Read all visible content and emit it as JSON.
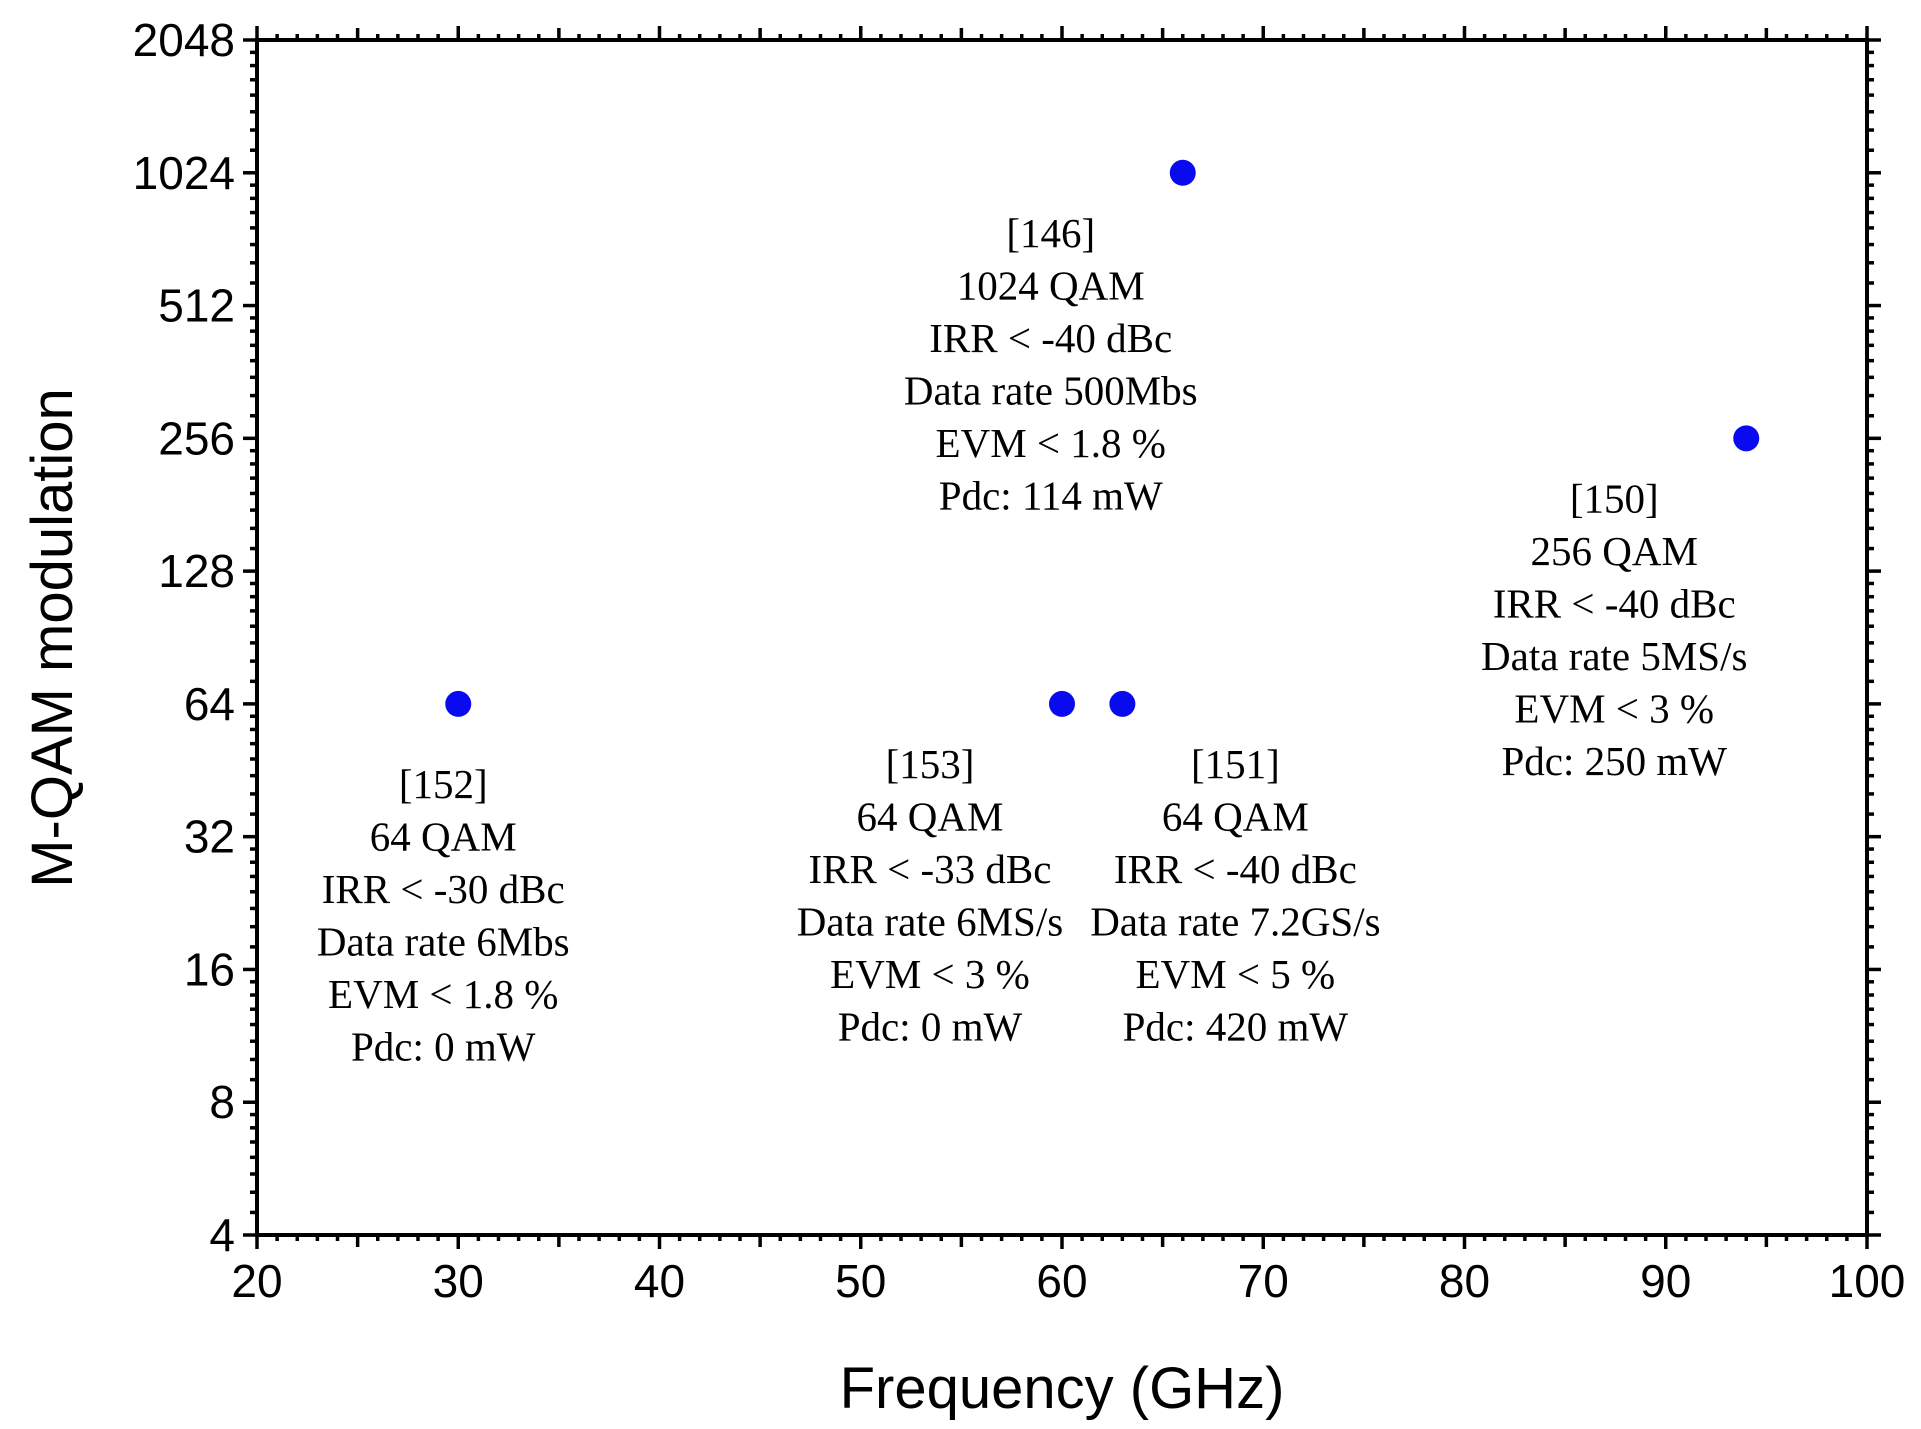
{
  "chart_data": {
    "type": "scatter",
    "title": "",
    "xlabel": "Frequency (GHz)",
    "ylabel": "M-QAM modulation",
    "xlim": [
      20,
      100
    ],
    "ylim": [
      4,
      2048
    ],
    "yscale": "log2",
    "grid": false,
    "legend": "none",
    "marker_color": "#0a0af0",
    "x_ticks": [
      20,
      30,
      40,
      50,
      60,
      70,
      80,
      90,
      100
    ],
    "y_ticks": [
      4,
      8,
      16,
      32,
      64,
      128,
      256,
      512,
      1024,
      2048
    ],
    "x_tick_labels": [
      "20",
      "30",
      "40",
      "50",
      "60",
      "70",
      "80",
      "90",
      "100"
    ],
    "y_tick_labels": [
      "4",
      "8",
      "16",
      "32",
      "64",
      "128",
      "256",
      "512",
      "1024",
      "2048"
    ],
    "points": [
      {
        "x": 30,
        "y": 64,
        "label": [
          "[152]",
          "64 QAM",
          "IRR < -30 dBc",
          "Data rate 6Mbs",
          "EVM < 1.8 %",
          "Pdc: 0 mW"
        ],
        "label_pos": "below"
      },
      {
        "x": 60,
        "y": 64,
        "label": [
          "[153]",
          "64 QAM",
          "IRR < -33 dBc",
          "Data rate 6MS/s",
          "EVM < 3 %",
          "Pdc: 0 mW"
        ],
        "label_pos": "below-left"
      },
      {
        "x": 63,
        "y": 64,
        "label": [
          "[151]",
          "64 QAM",
          "IRR < -40 dBc",
          "Data rate 7.2GS/s",
          "EVM < 5 %",
          "Pdc: 420 mW"
        ],
        "label_pos": "below-right"
      },
      {
        "x": 66,
        "y": 1024,
        "label": [
          "[146]",
          "1024 QAM",
          "IRR < -40 dBc",
          "Data rate 500Mbs",
          "EVM < 1.8 %",
          "Pdc: 114 mW"
        ],
        "label_pos": "below-left"
      },
      {
        "x": 94,
        "y": 256,
        "label": [
          "[150]",
          "256 QAM",
          "IRR < -40 dBc",
          "Data rate 5MS/s",
          "EVM < 3 %",
          "Pdc: 250 mW"
        ],
        "label_pos": "below-left"
      }
    ]
  }
}
